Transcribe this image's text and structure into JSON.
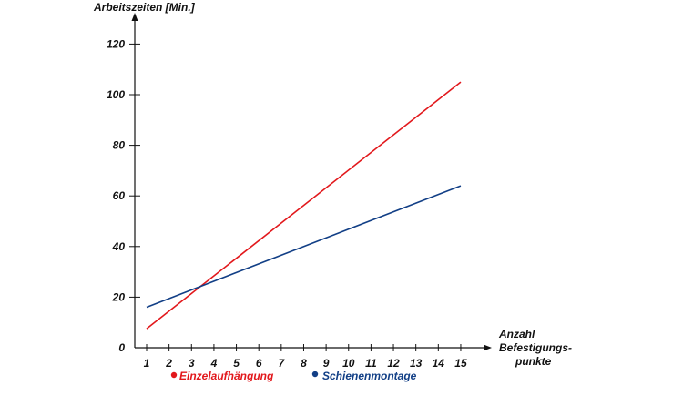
{
  "chart_data": {
    "type": "line",
    "title": "",
    "ylabel": "Arbeitszeiten [Min.]",
    "xlabel_lines": [
      "Anzahl",
      "Befestigungs-",
      "punkte"
    ],
    "x": [
      1,
      15
    ],
    "xlim": [
      1,
      15
    ],
    "ylim": [
      0,
      120
    ],
    "x_ticks": [
      1,
      2,
      3,
      4,
      5,
      6,
      7,
      8,
      9,
      10,
      11,
      12,
      13,
      14,
      15
    ],
    "y_ticks": [
      0,
      20,
      40,
      60,
      80,
      100,
      120
    ],
    "grid": false,
    "legend_position": "bottom",
    "series": [
      {
        "name": "Einzelaufhängung",
        "color": "#e2181c",
        "values": [
          7.5,
          105
        ]
      },
      {
        "name": "Schienenmontage",
        "color": "#123f86",
        "values": [
          16,
          64
        ]
      }
    ]
  }
}
